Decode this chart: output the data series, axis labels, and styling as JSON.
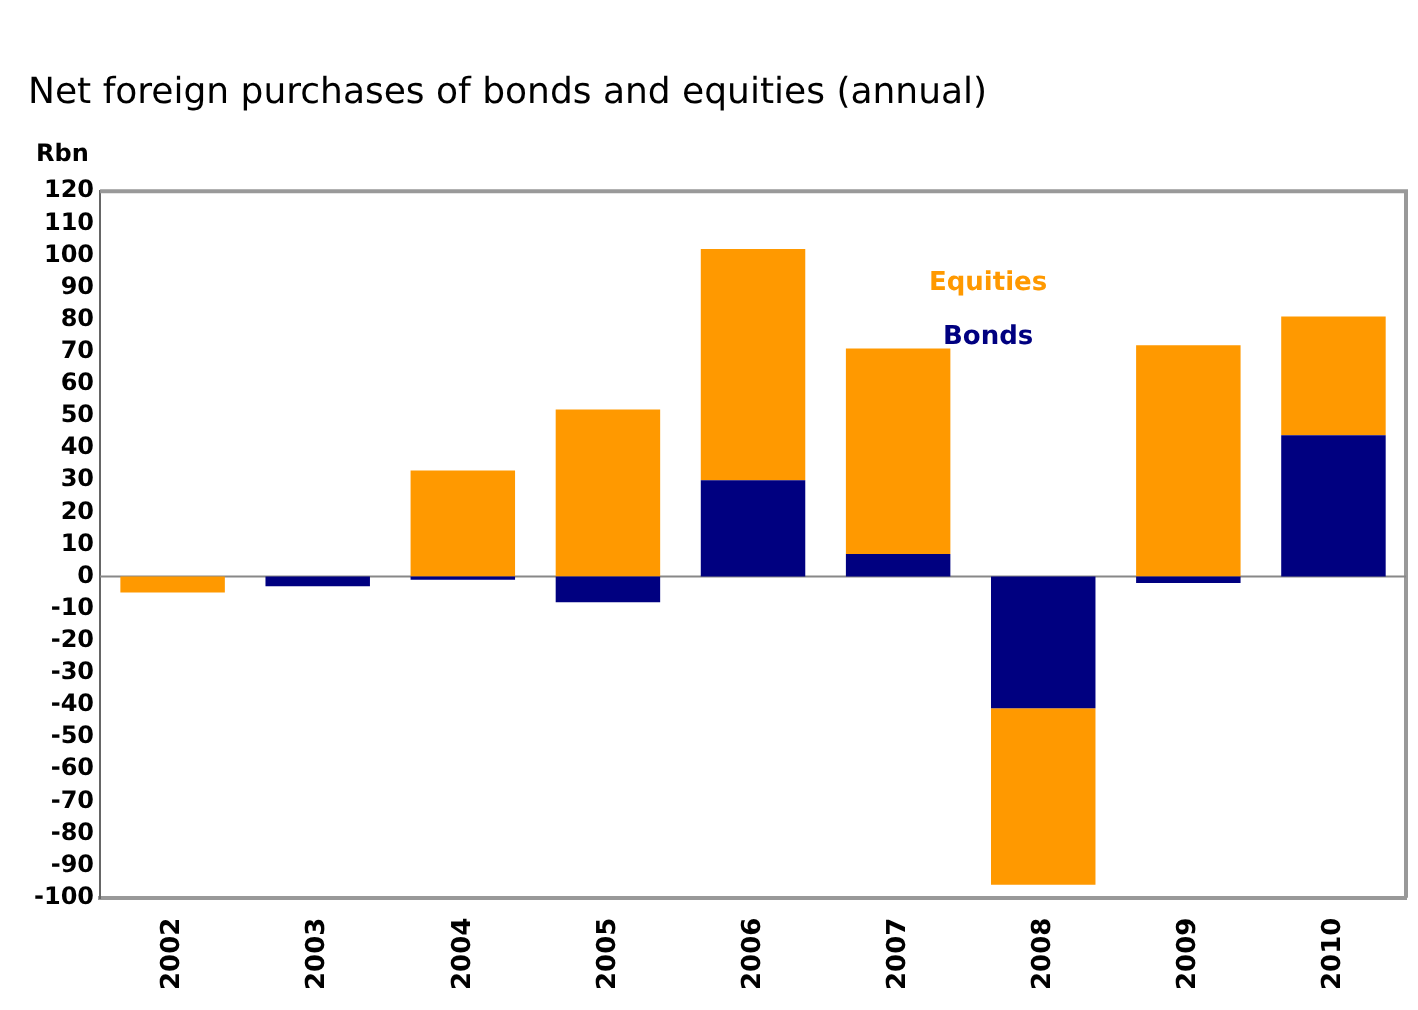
{
  "chart_data": {
    "type": "bar",
    "title": "Net foreign purchases of bonds and equities (annual)",
    "ylabel": "Rbn",
    "categories": [
      "2002",
      "2003",
      "2004",
      "2005",
      "2006",
      "2007",
      "2008",
      "2009",
      "2010"
    ],
    "stacked": true,
    "series": [
      {
        "name": "Bonds",
        "color": "#000080",
        "values": [
          0,
          -3,
          -1,
          -8,
          30,
          7,
          -41,
          -2,
          44
        ]
      },
      {
        "name": "Equities",
        "color": "#ff9900",
        "values": [
          -5,
          0,
          33,
          52,
          72,
          64,
          -55,
          72,
          37
        ]
      }
    ],
    "ylim": [
      -100,
      120
    ],
    "yticks": [
      -100,
      -90,
      -80,
      -70,
      -60,
      -50,
      -40,
      -30,
      -20,
      -10,
      0,
      10,
      20,
      30,
      40,
      50,
      60,
      70,
      80,
      90,
      100,
      110,
      120
    ],
    "ref_lines": [
      {
        "axis": "y",
        "value": 0,
        "color": "#888888"
      }
    ],
    "grid": false,
    "legend": "top"
  }
}
